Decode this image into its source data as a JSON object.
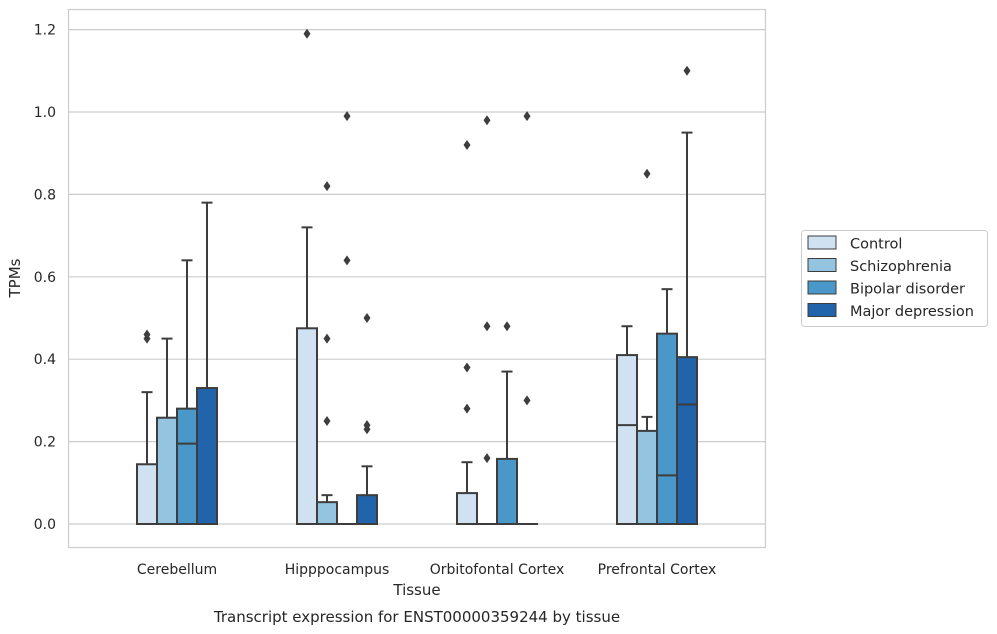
{
  "chart_data": {
    "type": "box",
    "title": "Transcript expression for ENST00000359244 by tissue",
    "xlabel": "Tissue",
    "ylabel": "TPMs",
    "ylim": [
      -0.06,
      1.25
    ],
    "yticks": [
      "0.0",
      "0.2",
      "0.4",
      "0.6",
      "0.8",
      "1.0",
      "1.2"
    ],
    "categories": [
      "Cerebellum",
      "Hipppocampus",
      "Orbitofontal Cortex",
      "Prefrontal Cortex"
    ],
    "grid": "horizontal",
    "legend_position": "right",
    "series": [
      {
        "name": "Control",
        "color": "#d0e1f2",
        "boxes": [
          {
            "q1": 0,
            "median": 0,
            "q3": 0.145,
            "whisker_low": 0,
            "whisker_high": 0.32,
            "outliers": [
              0.45,
              0.46
            ]
          },
          {
            "q1": 0,
            "median": 0,
            "q3": 0.475,
            "whisker_low": 0,
            "whisker_high": 0.72,
            "outliers": [
              1.19
            ]
          },
          {
            "q1": 0,
            "median": 0,
            "q3": 0.075,
            "whisker_low": 0,
            "whisker_high": 0.15,
            "outliers": [
              0.28,
              0.38,
              0.92
            ]
          },
          {
            "q1": 0,
            "median": 0.24,
            "q3": 0.41,
            "whisker_low": 0,
            "whisker_high": 0.48,
            "outliers": []
          }
        ]
      },
      {
        "name": "Schizophrenia",
        "color": "#94c4df",
        "boxes": [
          {
            "q1": 0,
            "median": 0,
            "q3": 0.258,
            "whisker_low": 0,
            "whisker_high": 0.45,
            "outliers": []
          },
          {
            "q1": 0,
            "median": 0,
            "q3": 0.053,
            "whisker_low": 0,
            "whisker_high": 0.07,
            "outliers": [
              0.25,
              0.45,
              0.82
            ]
          },
          {
            "q1": 0,
            "median": 0,
            "q3": 0,
            "whisker_low": 0,
            "whisker_high": 0,
            "outliers": [
              0.16,
              0.48,
              0.98
            ]
          },
          {
            "q1": 0,
            "median": 0,
            "q3": 0.226,
            "whisker_low": 0,
            "whisker_high": 0.26,
            "outliers": [
              0.85
            ]
          }
        ]
      },
      {
        "name": "Bipolar disorder",
        "color": "#4a98c9",
        "boxes": [
          {
            "q1": 0,
            "median": 0.195,
            "q3": 0.28,
            "whisker_low": 0,
            "whisker_high": 0.64,
            "outliers": []
          },
          {
            "q1": 0,
            "median": 0,
            "q3": 0,
            "whisker_low": 0,
            "whisker_high": 0,
            "outliers": [
              0.64,
              0.99
            ]
          },
          {
            "q1": 0,
            "median": 0,
            "q3": 0.158,
            "whisker_low": 0,
            "whisker_high": 0.37,
            "outliers": [
              0.48
            ]
          },
          {
            "q1": 0,
            "median": 0.118,
            "q3": 0.462,
            "whisker_low": 0,
            "whisker_high": 0.57,
            "outliers": []
          }
        ]
      },
      {
        "name": "Major depression",
        "color": "#2164ab",
        "boxes": [
          {
            "q1": 0,
            "median": 0,
            "q3": 0.33,
            "whisker_low": 0,
            "whisker_high": 0.78,
            "outliers": []
          },
          {
            "q1": 0,
            "median": 0,
            "q3": 0.07,
            "whisker_low": 0,
            "whisker_high": 0.14,
            "outliers": [
              0.23,
              0.24,
              0.5
            ]
          },
          {
            "q1": 0,
            "median": 0,
            "q3": 0,
            "whisker_low": 0,
            "whisker_high": 0,
            "outliers": [
              0.3,
              0.99
            ]
          },
          {
            "q1": 0,
            "median": 0.29,
            "q3": 0.405,
            "whisker_low": 0,
            "whisker_high": 0.95,
            "outliers": [
              1.1
            ]
          }
        ]
      }
    ]
  }
}
